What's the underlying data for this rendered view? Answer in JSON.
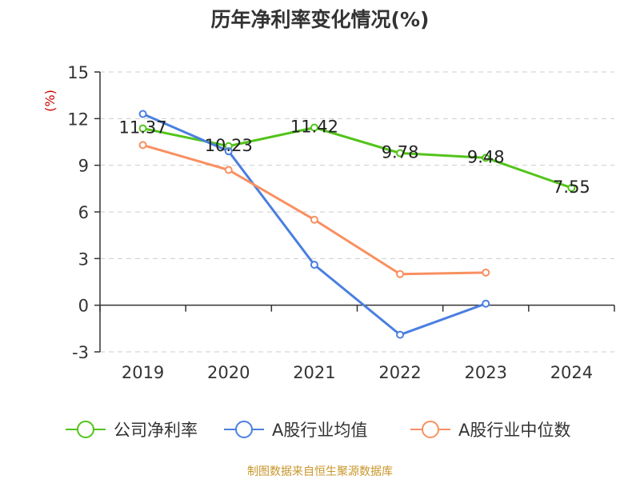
{
  "chart_data": {
    "type": "line",
    "title": "历年净利率变化情况(%)",
    "ylabel": "(%)",
    "xlabel": "",
    "categories": [
      "2019",
      "2020",
      "2021",
      "2022",
      "2023",
      "2024"
    ],
    "ylim": [
      -3,
      15
    ],
    "yticks": [
      -3,
      0,
      3,
      6,
      9,
      12,
      15
    ],
    "grid": true,
    "legend_position": "bottom",
    "series": [
      {
        "name": "公司净利率",
        "color": "#52c41a",
        "values": [
          11.37,
          10.23,
          11.42,
          9.78,
          9.48,
          7.55
        ],
        "show_labels": true
      },
      {
        "name": "A股行业均值",
        "color": "#4a7fe0",
        "values": [
          12.3,
          9.9,
          2.6,
          -1.9,
          0.1,
          null
        ],
        "show_labels": false
      },
      {
        "name": "A股行业中位数",
        "color": "#f89060",
        "values": [
          10.3,
          8.7,
          5.5,
          2.0,
          2.1,
          null
        ],
        "show_labels": false
      }
    ],
    "source": "制图数据来自恒生聚源数据库",
    "colors": {
      "title": "#333333",
      "axis": "#333333",
      "ylabel": "#cc0000",
      "source": "#c8962a",
      "grid": "#cccccc"
    }
  }
}
